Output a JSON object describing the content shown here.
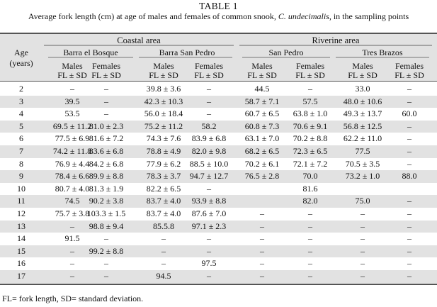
{
  "table": {
    "title": "TABLE 1",
    "caption_prefix": "Average fork length (cm) at age of males and females of common snook, ",
    "caption_species": "C. undecimalis",
    "caption_suffix": ", in the sampling points",
    "header": {
      "age_line1": "Age",
      "age_line2": "(years)",
      "groups": [
        "Coastal area",
        "Riverine area"
      ],
      "sites": [
        "Barra el Bosque",
        "Barra San Pedro",
        "San Pedro",
        "Tres Brazos"
      ],
      "sex_labels": [
        "Males",
        "Females",
        "Males",
        "Females",
        "Males",
        "Females",
        "Males",
        "Females"
      ],
      "measure_label": "FL ± SD"
    },
    "rows": [
      [
        "2",
        "–",
        "–",
        "39.8 ± 3.6",
        "–",
        "44.5",
        "–",
        "33.0",
        "–"
      ],
      [
        "3",
        "39.5",
        "–",
        "42.3 ± 10.3",
        "–",
        "58.7 ± 7.1",
        "57.5",
        "48.0 ± 10.6",
        "–"
      ],
      [
        "4",
        "53.5",
        "–",
        "56.0 ± 18.4",
        "–",
        "60.7 ± 6.5",
        "63.8 ± 1.0",
        "49.3 ± 13.7",
        "60.0"
      ],
      [
        "5",
        "69.5 ± 11.2",
        "81.0 ± 2.3",
        "75.2 ± 11.2",
        "58.2",
        "60.8 ± 7.3",
        "70.6 ± 9.1",
        "56.8 ± 12.5",
        "–"
      ],
      [
        "6",
        "77.5 ± 6.9",
        "81.6 ± 7.2",
        "74.3 ± 7.6",
        "83.9 ± 6.8",
        "63.1 ± 7.0",
        "70.2 ± 8.8",
        "62.2 ± 11.0",
        "–"
      ],
      [
        "7",
        "74.2 ± 11.8",
        "83.6 ± 6.8",
        "78.8 ± 4.9",
        "82.0 ± 9.8",
        "68.2 ± 6.5",
        "72.3 ± 6.5",
        "77.5",
        "–"
      ],
      [
        "8",
        "76.9 ± 4.4",
        "84.2 ± 6.8",
        "77.9 ± 6.2",
        "88.5 ± 10.0",
        "70.2 ± 6.1",
        "72.1 ± 7.2",
        "70.5 ± 3.5",
        "–"
      ],
      [
        "9",
        "78.4 ± 6.6",
        "89.9 ± 8.8",
        "78.3 ± 3.7",
        "94.7 ± 12.7",
        "76.5 ± 2.8",
        "70.0",
        "73.2 ± 1.0",
        "88.0"
      ],
      [
        "10",
        "80.7 ± 4.0",
        "81.3 ± 1.9",
        "82.2 ± 6.5",
        "–",
        "",
        "81.6",
        "",
        ""
      ],
      [
        "11",
        "74.5",
        "90.2 ± 3.8",
        "83.7 ± 4.0",
        "93.9 ± 8.8",
        "",
        "82.0",
        "75.0",
        "–"
      ],
      [
        "12",
        "75.7 ± 3.8",
        "103.3 ± 1.5",
        "83.7 ± 4.0",
        "87.6 ± 7.0",
        "–",
        "–",
        "–",
        "–"
      ],
      [
        "13",
        "–",
        "98.8 ± 9.4",
        "85.5.8",
        "97.1 ± 2.3",
        "–",
        "–",
        "–",
        "–"
      ],
      [
        "14",
        "91.5",
        "–",
        "–",
        "–",
        "–",
        "–",
        "–",
        "–"
      ],
      [
        "15",
        "–",
        "99.2 ± 8.8",
        "–",
        "–",
        "–",
        "–",
        "–",
        "–"
      ],
      [
        "16",
        "–",
        "–",
        "–",
        "97.5",
        "–",
        "–",
        "–",
        "–"
      ],
      [
        "17",
        "–",
        "–",
        "94.5",
        "–",
        "–",
        "–",
        "–",
        "–"
      ]
    ],
    "footnote": "FL= fork length, SD= standard deviation."
  }
}
